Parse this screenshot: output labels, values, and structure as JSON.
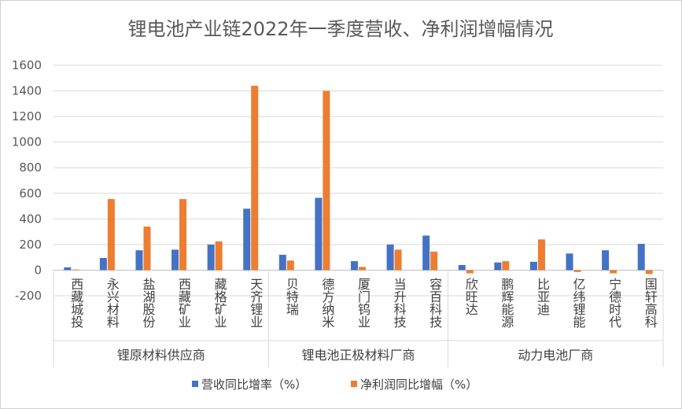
{
  "chart_data": {
    "type": "bar",
    "title": "锂电池产业链2022年一季度营收、净利润增幅情况",
    "xlabel": "",
    "ylabel": "",
    "ylim": [
      -200,
      1600
    ],
    "yticks": [
      "-200",
      "0",
      "200",
      "400",
      "600",
      "800",
      "1000",
      "1200",
      "1400",
      "1600"
    ],
    "grid": true,
    "legend_position": "bottom",
    "categories": [
      "西藏城投",
      "永兴材料",
      "盐湖股份",
      "西藏矿业",
      "藏格矿业",
      "天齐锂业",
      "贝特瑞",
      "德方纳米",
      "厦门钨业",
      "当升科技",
      "容百科技",
      "欣旺达",
      "鹏辉能源",
      "比亚迪",
      "亿纬锂能",
      "宁德时代",
      "国轩高科"
    ],
    "groups": [
      {
        "label": "锂原材料供应商",
        "count": 6
      },
      {
        "label": "锂电池正极材料厂商",
        "count": 5
      },
      {
        "label": "动力电池厂商",
        "count": 6
      }
    ],
    "series": [
      {
        "name": "营收同比增率（%）",
        "color": "#4472c4",
        "values": [
          22,
          95,
          155,
          160,
          200,
          480,
          120,
          565,
          70,
          200,
          270,
          40,
          60,
          65,
          130,
          155,
          205
        ]
      },
      {
        "name": "净利润同比增幅（%）",
        "color": "#ed7d31",
        "values": [
          5,
          555,
          340,
          555,
          225,
          1440,
          75,
          1400,
          25,
          160,
          145,
          -25,
          70,
          240,
          -15,
          -25,
          -30
        ]
      }
    ]
  }
}
